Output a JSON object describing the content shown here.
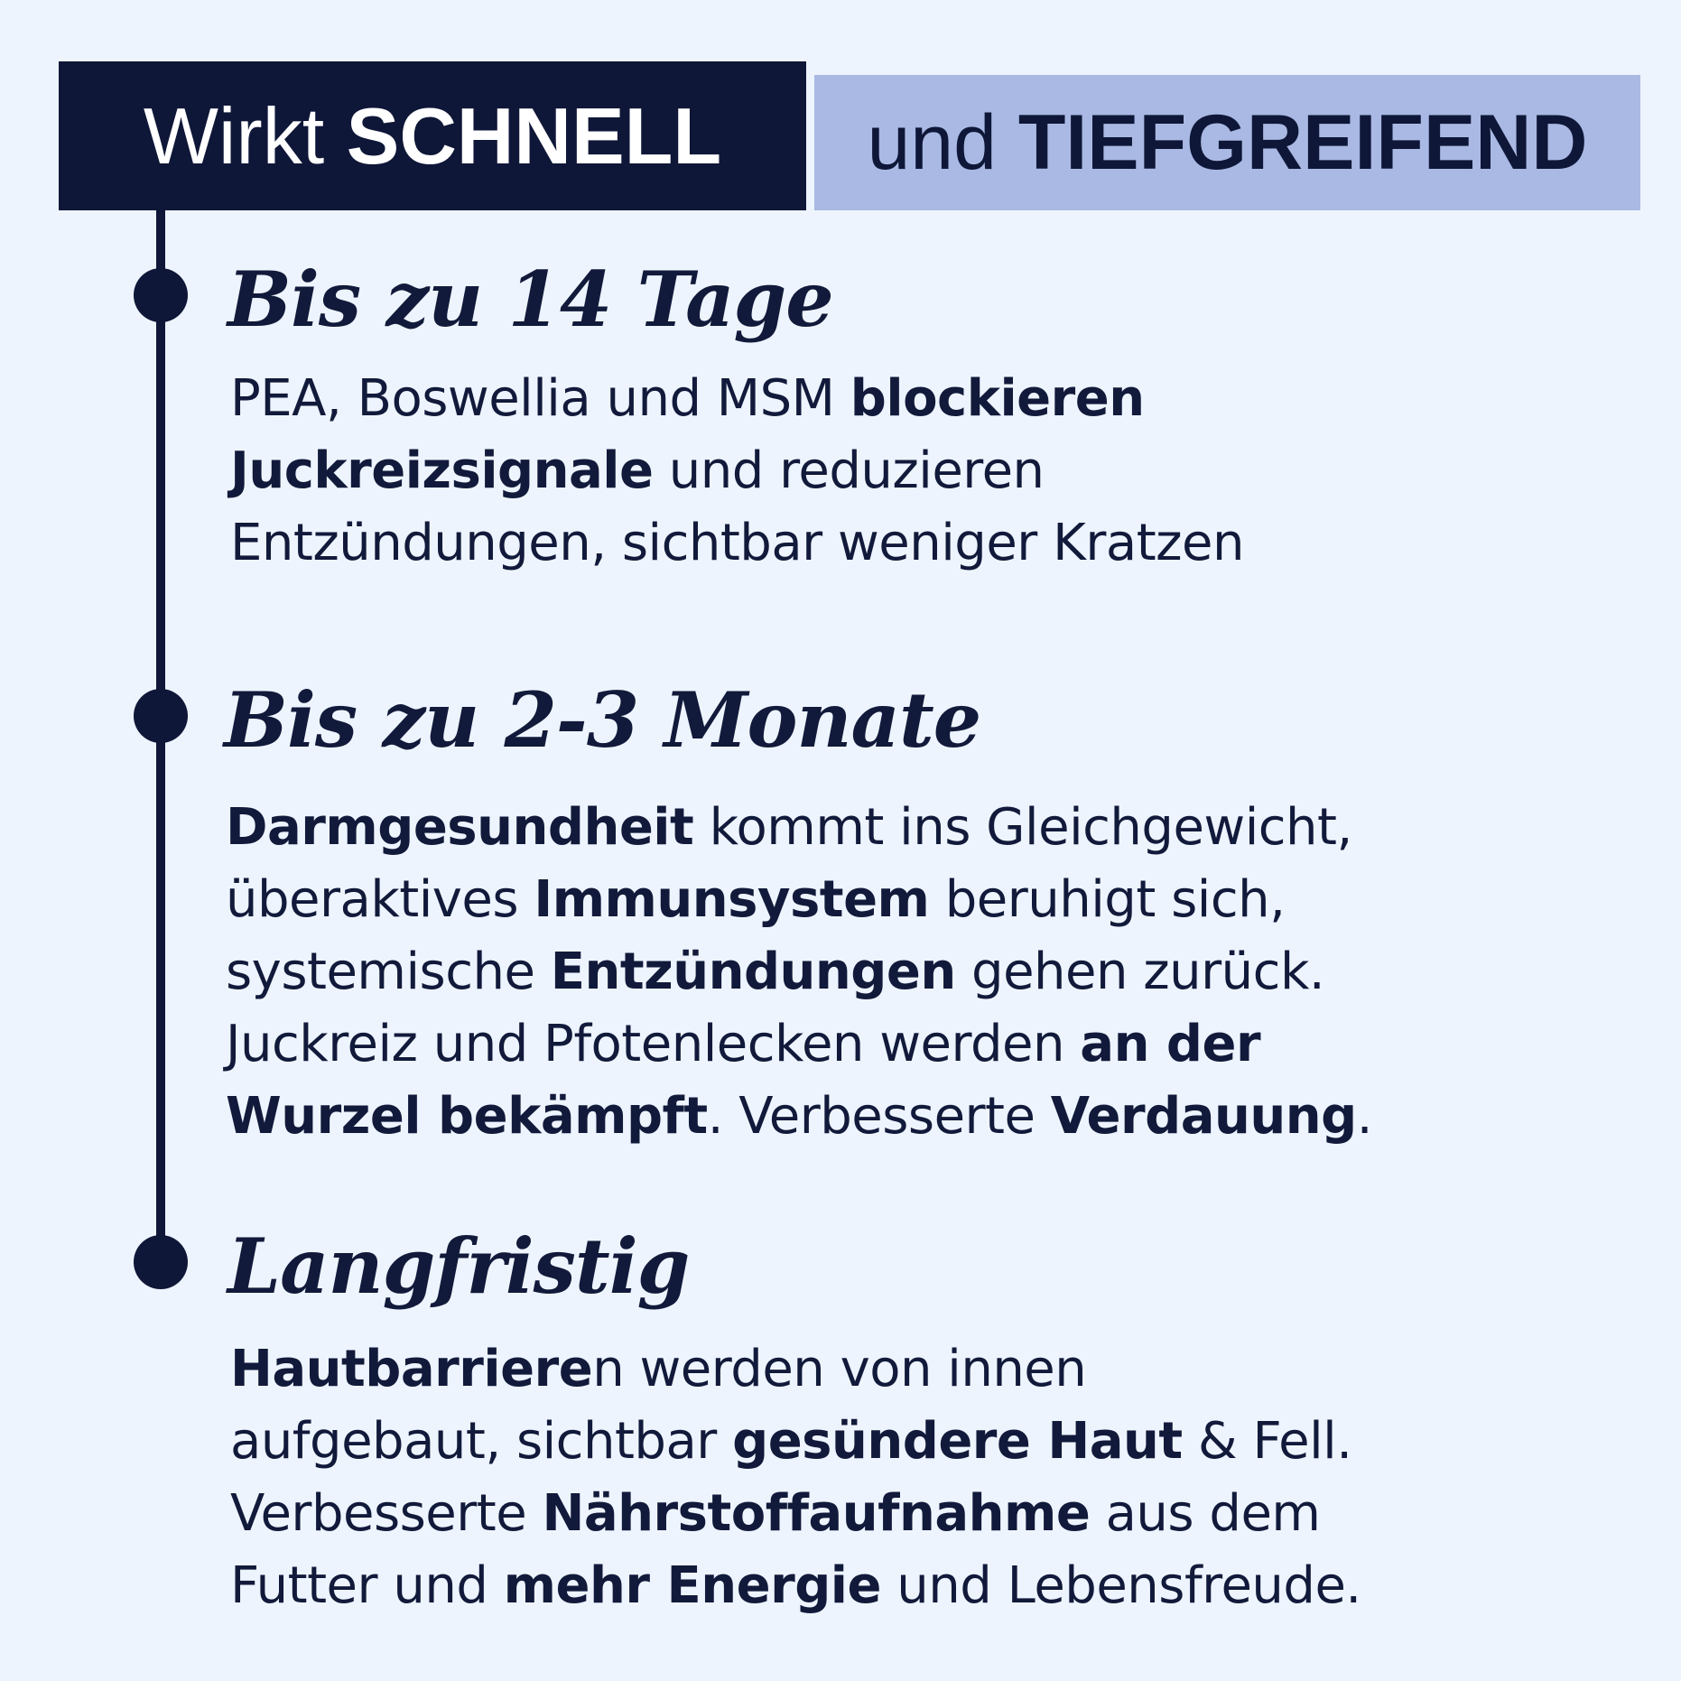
{
  "header": {
    "left": {
      "normal": "Wirkt ",
      "bold": "SCHNELL"
    },
    "right": {
      "normal": "und ",
      "bold": "TIEFGREIFEND"
    }
  },
  "colors": {
    "background": "#eef4fe",
    "dark": "#0f1738",
    "accent": "#a9b9e3"
  },
  "sections": [
    {
      "heading": "Bis zu 14 Tage",
      "lines": [
        [
          {
            "t": "PEA, Boswellia und MSM ",
            "b": false
          },
          {
            "t": "blockieren",
            "b": true
          }
        ],
        [
          {
            "t": "Juckreizsignale",
            "b": true
          },
          {
            "t": " und reduzieren",
            "b": false
          }
        ],
        [
          {
            "t": "Entzündungen, sichtbar weniger Kratzen",
            "b": false
          }
        ]
      ]
    },
    {
      "heading": "Bis zu 2-3 Monate",
      "lines": [
        [
          {
            "t": "Darmgesundheit",
            "b": true
          },
          {
            "t": " kommt ins Gleichgewicht,",
            "b": false
          }
        ],
        [
          {
            "t": "überaktives ",
            "b": false
          },
          {
            "t": "Immunsystem",
            "b": true
          },
          {
            "t": " beruhigt sich,",
            "b": false
          }
        ],
        [
          {
            "t": "systemische ",
            "b": false
          },
          {
            "t": "Entzündungen",
            "b": true
          },
          {
            "t": " gehen zurück.",
            "b": false
          }
        ],
        [
          {
            "t": "Juckreiz und Pfotenlecken werden ",
            "b": false
          },
          {
            "t": "an der",
            "b": true
          }
        ],
        [
          {
            "t": "Wurzel bekämpft",
            "b": true
          },
          {
            "t": ". Verbesserte ",
            "b": false
          },
          {
            "t": "Verdauung",
            "b": true
          },
          {
            "t": ".",
            "b": false
          }
        ]
      ]
    },
    {
      "heading": "Langfristig",
      "lines": [
        [
          {
            "t": "Hautbarriere",
            "b": true
          },
          {
            "t": "n werden von innen",
            "b": false
          }
        ],
        [
          {
            "t": "aufgebaut, sichtbar ",
            "b": false
          },
          {
            "t": "gesündere Haut",
            "b": true
          },
          {
            "t": " & Fell.",
            "b": false
          }
        ],
        [
          {
            "t": "Verbesserte ",
            "b": false
          },
          {
            "t": "Nährstoffaufnahme",
            "b": true
          },
          {
            "t": " aus dem",
            "b": false
          }
        ],
        [
          {
            "t": "Futter und ",
            "b": false
          },
          {
            "t": "mehr Energie",
            "b": true
          },
          {
            "t": " und Lebensfreude.",
            "b": false
          }
        ]
      ]
    }
  ]
}
